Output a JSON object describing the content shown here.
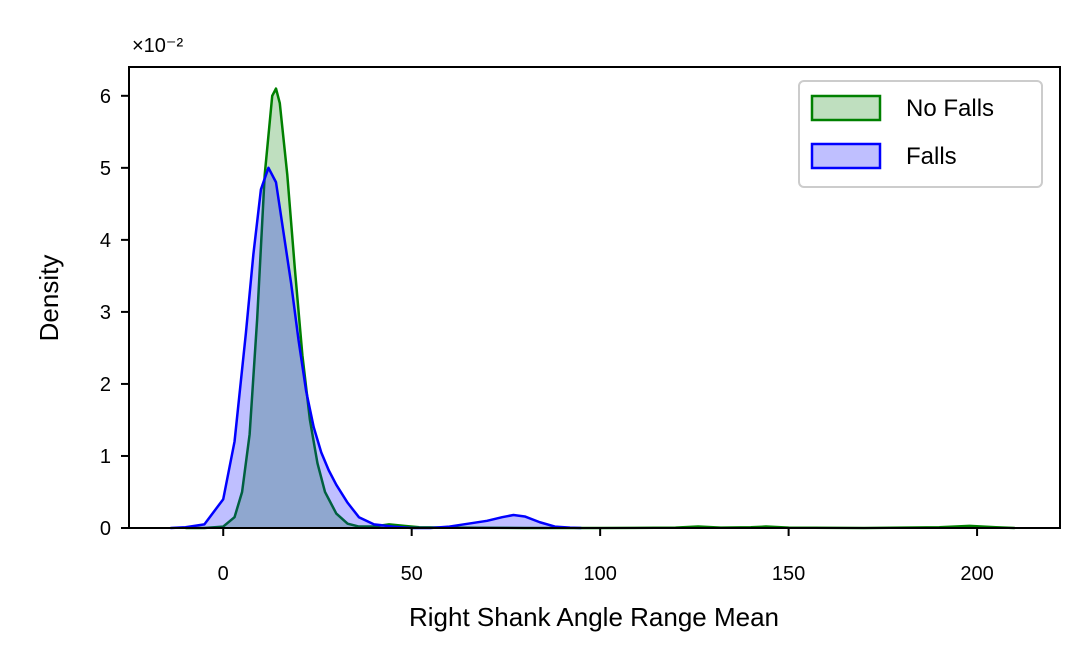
{
  "chart_data": {
    "type": "area",
    "xlabel": "Right Shank Angle Range Mean",
    "ylabel": "Density",
    "y_offset_text": "×10⁻²",
    "xlim": [
      -25,
      222
    ],
    "ylim": [
      0,
      6.4
    ],
    "y_scale_factor": 0.01,
    "xticks": [
      0,
      50,
      100,
      150,
      200
    ],
    "xtick_labels": [
      "0",
      "50",
      "100",
      "150",
      "200"
    ],
    "yticks": [
      0,
      1,
      2,
      3,
      4,
      5,
      6
    ],
    "ytick_labels": [
      "0",
      "1",
      "2",
      "3",
      "4",
      "5",
      "6"
    ],
    "grid": false,
    "legend_position": "top-right",
    "series": [
      {
        "name": "No Falls",
        "line_color": "#008000",
        "fill_color": "#008000",
        "fill_opacity": 0.25,
        "x": [
          -10,
          -5,
          0,
          3,
          5,
          7,
          9,
          11,
          13,
          14,
          15,
          17,
          19,
          21,
          23,
          25,
          27,
          30,
          33,
          36,
          40,
          44,
          48,
          52,
          60,
          80,
          100,
          120,
          126,
          132,
          140,
          144,
          150,
          170,
          190,
          198,
          205,
          210
        ],
        "y": [
          0,
          0.0,
          0.02,
          0.15,
          0.5,
          1.3,
          2.9,
          4.9,
          6.0,
          6.1,
          5.9,
          4.9,
          3.6,
          2.4,
          1.5,
          0.9,
          0.5,
          0.2,
          0.06,
          0.02,
          0.02,
          0.05,
          0.03,
          0.01,
          0.005,
          0.0,
          0.0,
          0.005,
          0.02,
          0.005,
          0.01,
          0.02,
          0.005,
          0.0,
          0.01,
          0.03,
          0.01,
          0
        ]
      },
      {
        "name": "Falls",
        "line_color": "#0000ff",
        "fill_color": "#0000ff",
        "fill_opacity": 0.25,
        "x": [
          -14,
          -10,
          -5,
          0,
          3,
          6,
          8,
          10,
          12,
          14,
          16,
          18,
          20,
          22,
          24,
          26,
          28,
          30,
          33,
          36,
          40,
          45,
          50,
          55,
          60,
          65,
          70,
          74,
          77,
          80,
          84,
          88,
          92,
          95
        ],
        "y": [
          0,
          0.01,
          0.05,
          0.4,
          1.2,
          2.7,
          3.8,
          4.7,
          5.0,
          4.8,
          4.1,
          3.4,
          2.6,
          1.9,
          1.4,
          1.05,
          0.8,
          0.6,
          0.35,
          0.15,
          0.05,
          0.02,
          0.0,
          0.0,
          0.02,
          0.06,
          0.1,
          0.15,
          0.18,
          0.16,
          0.08,
          0.02,
          0.005,
          0
        ]
      }
    ]
  }
}
